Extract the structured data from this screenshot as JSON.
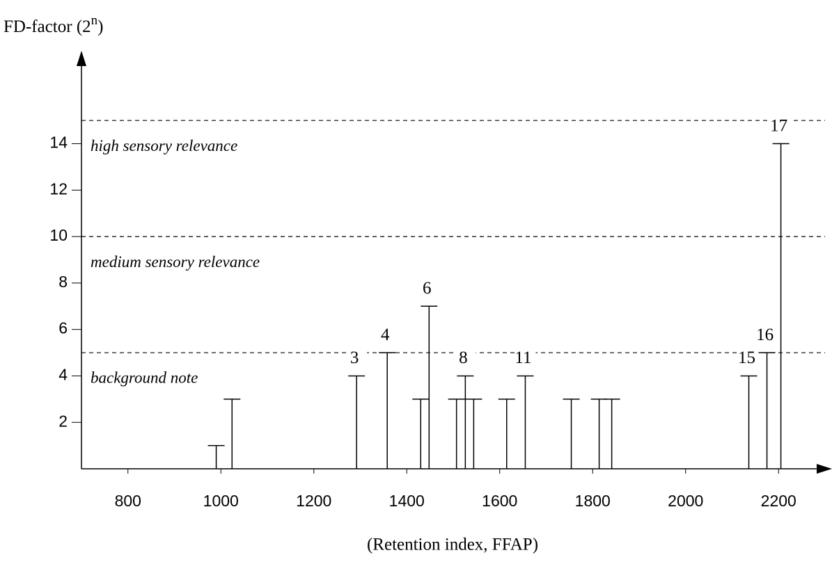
{
  "chart_data": {
    "type": "stick",
    "y_label": {
      "base": "FD-factor (2",
      "exponent": "n",
      "close": ")"
    },
    "x_label": "(Retention index, FFAP)",
    "x": [
      990,
      1024,
      1292,
      1358,
      1430,
      1448,
      1507,
      1526,
      1544,
      1615,
      1655,
      1754,
      1814,
      1841,
      2136,
      2175,
      2205
    ],
    "values": [
      1,
      3,
      4,
      5,
      3,
      7,
      3,
      4,
      3,
      3,
      4,
      3,
      3,
      3,
      4,
      5,
      14
    ],
    "peak_labels": [
      null,
      null,
      "3",
      "4",
      null,
      "6",
      null,
      "8",
      null,
      null,
      "11",
      null,
      null,
      null,
      "15",
      "16",
      "17"
    ],
    "xlim": [
      700,
      2300
    ],
    "xticks": [
      800,
      1000,
      1200,
      1400,
      1600,
      1800,
      2000,
      2200
    ],
    "ylim": [
      0,
      18
    ],
    "yticks": [
      2,
      4,
      6,
      8,
      10,
      12,
      14
    ],
    "thresholds": [
      5,
      10,
      15
    ],
    "annotations": [
      {
        "text": "high sensory relevance",
        "value": 14
      },
      {
        "text": "medium sensory relevance",
        "value": 9
      },
      {
        "text": "background note",
        "value": 4
      }
    ],
    "color": "#000000"
  }
}
